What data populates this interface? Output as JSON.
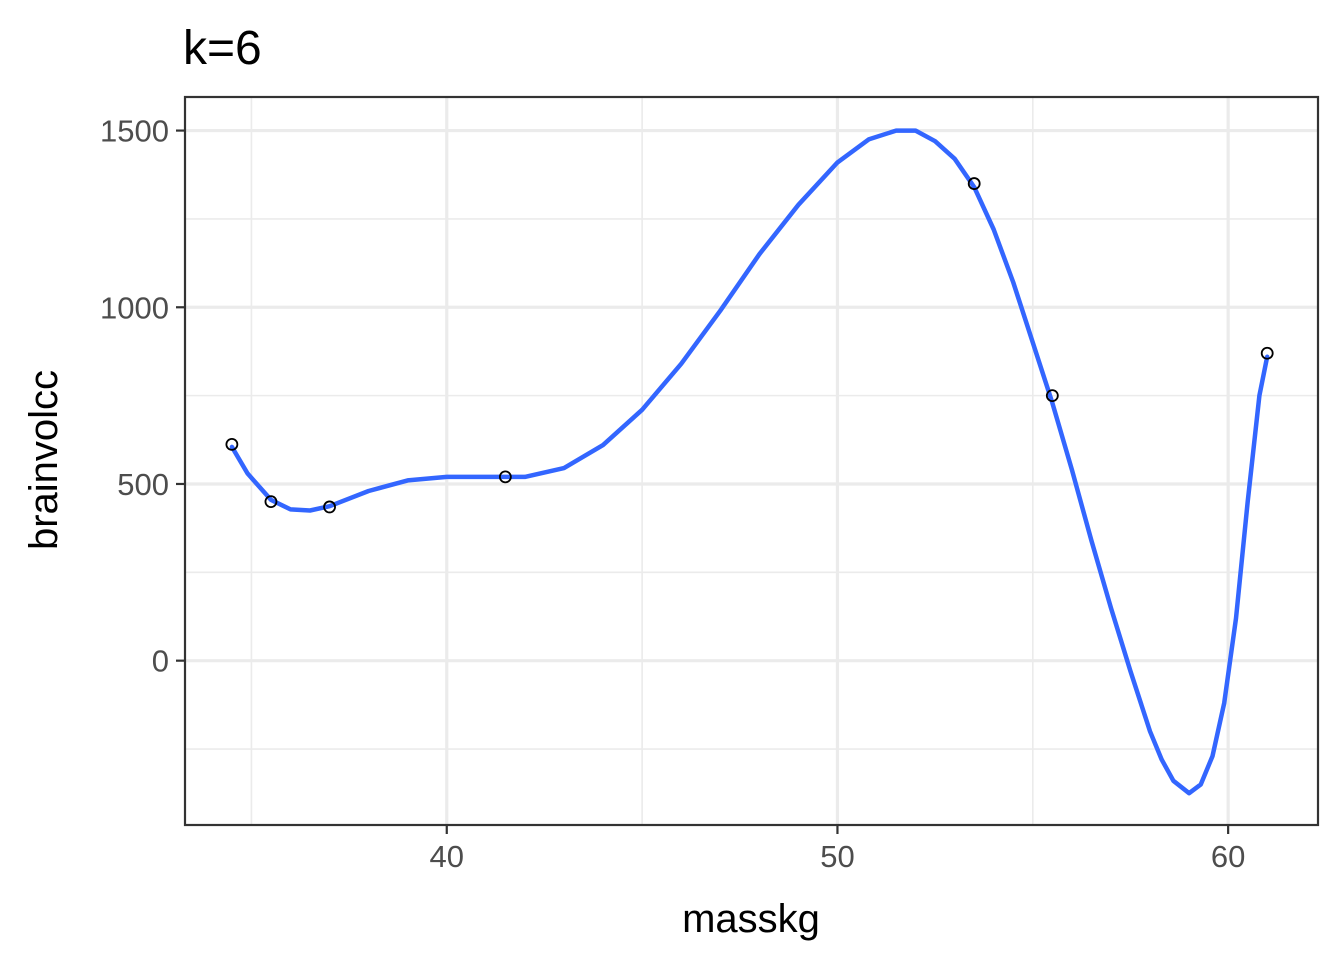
{
  "chart_data": {
    "type": "line",
    "title": "k=6",
    "xlabel": "masskg",
    "ylabel": "brainvolcc",
    "xlim": [
      33.3,
      62.3
    ],
    "ylim": [
      -465,
      1595
    ],
    "x_ticks": [
      40,
      50,
      60
    ],
    "x_tick_labels": [
      "40",
      "50",
      "60"
    ],
    "x_minor_ticks": [
      35,
      45,
      55
    ],
    "y_ticks": [
      0,
      500,
      1000,
      1500
    ],
    "y_tick_labels": [
      "0",
      "500",
      "1000",
      "1500"
    ],
    "y_minor_ticks": [
      -250,
      250,
      750,
      1250
    ],
    "grid": true,
    "colors": {
      "line": "#3366FF",
      "points": "#000000"
    },
    "series": [
      {
        "kind": "points",
        "x": [
          34.5,
          35.5,
          37.0,
          41.5,
          53.5,
          55.5,
          61.0
        ],
        "y": [
          612,
          450,
          435,
          520,
          1350,
          750,
          870
        ]
      },
      {
        "kind": "fitted-line",
        "x": [
          34.5,
          34.9,
          35.5,
          36.0,
          36.5,
          37.0,
          38.0,
          39.0,
          40.0,
          41.0,
          42.0,
          43.0,
          44.0,
          45.0,
          46.0,
          47.0,
          48.0,
          49.0,
          50.0,
          50.8,
          51.5,
          52.0,
          52.5,
          53.0,
          53.5,
          54.0,
          54.5,
          55.0,
          55.5,
          56.0,
          56.5,
          57.0,
          57.5,
          58.0,
          58.3,
          58.6,
          59.0,
          59.3,
          59.6,
          59.9,
          60.2,
          60.5,
          60.8,
          61.0
        ],
        "y": [
          605,
          530,
          455,
          428,
          425,
          437,
          480,
          510,
          520,
          520,
          520,
          545,
          610,
          710,
          840,
          990,
          1150,
          1290,
          1410,
          1475,
          1500,
          1500,
          1470,
          1420,
          1340,
          1220,
          1070,
          900,
          730,
          540,
          340,
          150,
          -30,
          -200,
          -280,
          -340,
          -375,
          -350,
          -270,
          -120,
          120,
          450,
          750,
          860
        ]
      }
    ]
  }
}
